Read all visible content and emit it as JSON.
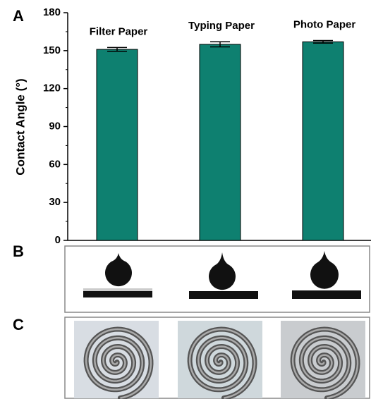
{
  "panels": [
    "A",
    "B",
    "C"
  ],
  "chart_data": {
    "type": "bar",
    "y_label": "Contact Angle (°)",
    "categories": [
      "Filter Paper",
      "Typing Paper",
      "Photo Paper"
    ],
    "values": [
      151,
      155,
      157
    ],
    "errors": [
      1.5,
      2,
      1
    ],
    "color": "#0e8070",
    "ylim": [
      0,
      180
    ],
    "yticks": [
      0,
      30,
      60,
      90,
      120,
      150,
      180
    ]
  }
}
